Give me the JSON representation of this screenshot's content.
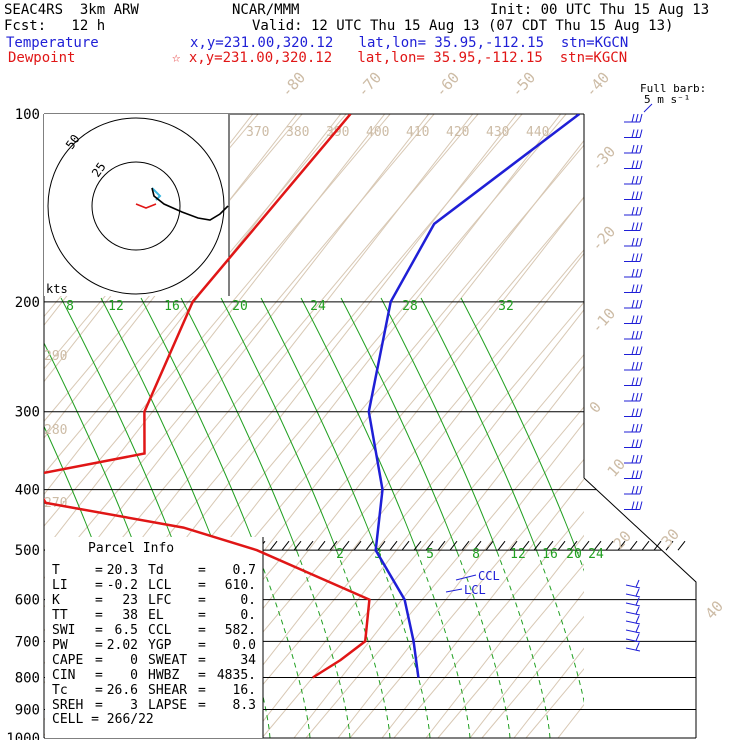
{
  "header": {
    "model": "SEAC4RS  3km ARW",
    "org": "NCAR/MMM",
    "init": "Init: 00 UTC Thu 15 Aug 13",
    "fcst": "Fcst:   12 h",
    "valid": "Valid: 12 UTC Thu 15 Aug 13 (07 CDT Thu 15 Aug 13)",
    "temperature_label": "Temperature",
    "temperature_info": "x,y=231.00,320.12   lat,lon= 35.95,-112.15  stn=KGCN",
    "dewpoint_label": "Dewpoint",
    "dewpoint_info": "☆ x,y=231.00,320.12   lat,lon= 35.95,-112.15  stn=KGCN"
  },
  "colors": {
    "temperature": "#1f1fd6",
    "dewpoint": "#e01616",
    "mixing_ratio": "#22a022",
    "isotherm": "#d8c8b4",
    "label_tan": "#cdbca6",
    "hodo_trace": "#000000",
    "hodo_low": "#39b6e0"
  },
  "barb_legend": {
    "line1": "Full barb:",
    "line2": "5 m s⁻¹"
  },
  "hodograph": {
    "units": "kts",
    "ring_labels": [
      "25",
      "50"
    ]
  },
  "parcel": {
    "title": "Parcel Info",
    "rows": [
      {
        "l1": "T",
        "v1": "20.3",
        "l2": "Td",
        "v2": "0.7"
      },
      {
        "l1": "LI",
        "v1": "-0.2",
        "l2": "LCL",
        "v2": "610."
      },
      {
        "l1": "K",
        "v1": "23",
        "l2": "LFC",
        "v2": "0."
      },
      {
        "l1": "TT",
        "v1": "38",
        "l2": "EL",
        "v2": "0."
      },
      {
        "l1": "SWI",
        "v1": "6.5",
        "l2": "CCL",
        "v2": "582."
      },
      {
        "l1": "PW",
        "v1": "2.02",
        "l2": "YGP",
        "v2": "0.0"
      },
      {
        "l1": "CAPE",
        "v1": "0",
        "l2": "SWEAT",
        "v2": "34"
      },
      {
        "l1": "CIN",
        "v1": "0",
        "l2": "HWBZ",
        "v2": "4835."
      },
      {
        "l1": "Tc",
        "v1": "26.6",
        "l2": "SHEAR",
        "v2": "16."
      },
      {
        "l1": "SREH",
        "v1": "3",
        "l2": "LAPSE",
        "v2": "8.3"
      }
    ],
    "cell": "CELL = 266/22"
  },
  "chart_data": {
    "type": "line",
    "title": "",
    "xlabel": "",
    "ylabel": "",
    "pressure_ticks": [
      "100",
      "200",
      "300",
      "400",
      "500",
      "600",
      "700",
      "800",
      "900",
      "1000"
    ],
    "isotherm_labels": [
      "-80",
      "-70",
      "-60",
      "-50",
      "-40",
      "-30",
      "-20",
      "-10",
      "0",
      "10",
      "20",
      "30",
      "40"
    ],
    "theta_labels_top": [
      "370",
      "380",
      "390",
      "400",
      "410",
      "420",
      "430",
      "440"
    ],
    "theta_labels_left": [
      "290",
      "280",
      "270"
    ],
    "mixing_ratio_labels_upper": [
      "8",
      "12",
      "16",
      "20",
      "24",
      "28",
      "32"
    ],
    "mixing_ratio_labels_lower": [
      "2",
      "3",
      "5",
      "8",
      "12",
      "16",
      "20",
      "24"
    ],
    "annotations": [
      "CCL",
      "LCL"
    ],
    "series": [
      {
        "name": "Temperature",
        "points": [
          [
            100,
            -47
          ],
          [
            150,
            -59
          ],
          [
            200,
            -54
          ],
          [
            300,
            -38
          ],
          [
            400,
            -20
          ],
          [
            500,
            -10
          ],
          [
            600,
            6
          ],
          [
            700,
            16
          ],
          [
            800,
            24
          ]
        ]
      },
      {
        "name": "Dewpoint",
        "points": [
          [
            100,
            -99
          ],
          [
            200,
            -99
          ],
          [
            300,
            -89
          ],
          [
            350,
            -81
          ],
          [
            380,
            -103
          ],
          [
            420,
            -94
          ],
          [
            460,
            -58
          ],
          [
            500,
            -37
          ],
          [
            600,
            -2
          ],
          [
            700,
            5
          ],
          [
            750,
            3
          ],
          [
            800,
            0
          ]
        ]
      }
    ],
    "wind_barbs": "right margin, 100-800 hPa",
    "ylim": [
      1000,
      100
    ],
    "yscale": "log"
  }
}
